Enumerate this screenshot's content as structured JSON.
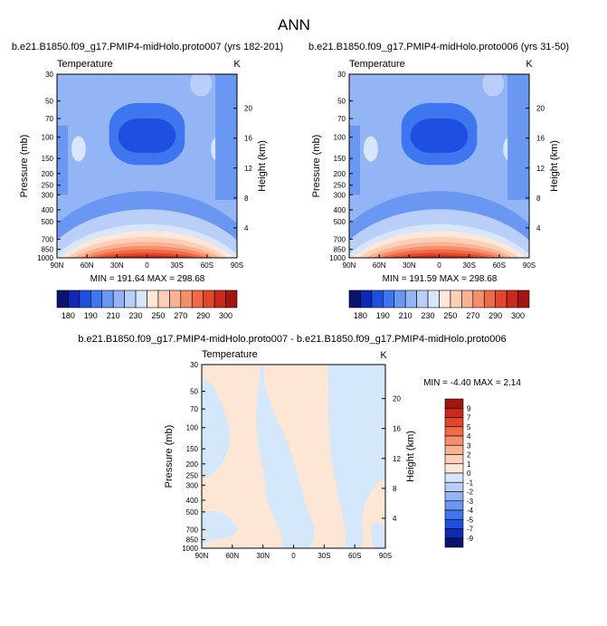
{
  "page_title": "ANN",
  "colors": {
    "cool": [
      "#0a146e",
      "#1029b4",
      "#1f4fe0",
      "#3e76f0",
      "#6a97f2",
      "#93b5f5",
      "#b9cff8",
      "#d8e6fb"
    ],
    "warm": [
      "#fde7d8",
      "#fbd0b6",
      "#f9b394",
      "#f58f6b",
      "#ef6a47",
      "#e2462c",
      "#c92a1b",
      "#a31510"
    ],
    "diff_cool": "#d4e7fb",
    "diff_warm": "#fde7d4"
  },
  "panels": [
    {
      "title": "b.e21.B1850.f09_g17.PMIP4-midHolo.proto007 (yrs 182-201)",
      "subtitle": "Temperature",
      "units": "K",
      "minmax": "MIN = 191.64  MAX = 298.68"
    },
    {
      "title": "b.e21.B1850.f09_g17.PMIP4-midHolo.proto006 (yrs 31-50)",
      "subtitle": "Temperature",
      "units": "K",
      "minmax": "MIN = 191.59  MAX = 298.68"
    }
  ],
  "diff_panel": {
    "title": "b.e21.B1850.f09_g17.PMIP4-midHolo.proto007 - b.e21.B1850.f09_g17.PMIP4-midHolo.proto006",
    "subtitle": "Temperature",
    "units": "K",
    "minmax": "MIN =  -4.40   MAX =   2.14"
  },
  "axes": {
    "x_ticks": [
      "90N",
      "60N",
      "30N",
      "0",
      "30S",
      "60S",
      "90S"
    ],
    "y_ticks": [
      "30",
      "50",
      "70",
      "100",
      "150",
      "200",
      "250",
      "300",
      "400",
      "500",
      "700",
      "850",
      "1000"
    ],
    "height_ticks": [
      "20",
      "16",
      "12",
      "8",
      "4"
    ],
    "ylabel": "Pressure (mb)",
    "ylabel_right": "Height (km)"
  },
  "colorbar_top": {
    "labels": [
      "180",
      "190",
      "210",
      "230",
      "250",
      "270",
      "290",
      "300"
    ]
  },
  "colorbar_diff": {
    "labels": [
      "9",
      "7",
      "5",
      "4",
      "3",
      "2",
      "1",
      "0",
      "-1",
      "-2",
      "-3",
      "-4",
      "-5",
      "-7",
      "-9"
    ]
  },
  "chart_data": [
    {
      "type": "heatmap",
      "title": "b.e21.B1850.f09_g17.PMIP4-midHolo.proto007 (yrs 182-201)",
      "variable": "Temperature",
      "units": "K",
      "x_axis": [
        "90N",
        "60N",
        "30N",
        "0",
        "30S",
        "60S",
        "90S"
      ],
      "y_axis_pressure_mb": [
        30,
        50,
        70,
        100,
        150,
        200,
        250,
        300,
        400,
        500,
        700,
        850,
        1000
      ],
      "y_axis_height_km": [
        20,
        16,
        12,
        8,
        4
      ],
      "contour_levels": [
        180,
        190,
        210,
        230,
        250,
        270,
        290,
        300
      ],
      "min": 191.64,
      "max": 298.68
    },
    {
      "type": "heatmap",
      "title": "b.e21.B1850.f09_g17.PMIP4-midHolo.proto006 (yrs 31-50)",
      "variable": "Temperature",
      "units": "K",
      "x_axis": [
        "90N",
        "60N",
        "30N",
        "0",
        "30S",
        "60S",
        "90S"
      ],
      "y_axis_pressure_mb": [
        30,
        50,
        70,
        100,
        150,
        200,
        250,
        300,
        400,
        500,
        700,
        850,
        1000
      ],
      "y_axis_height_km": [
        20,
        16,
        12,
        8,
        4
      ],
      "contour_levels": [
        180,
        190,
        210,
        230,
        250,
        270,
        290,
        300
      ],
      "min": 191.59,
      "max": 298.68
    },
    {
      "type": "heatmap",
      "title": "b.e21.B1850.f09_g17.PMIP4-midHolo.proto007 - b.e21.B1850.f09_g17.PMIP4-midHolo.proto006",
      "variable": "Temperature",
      "units": "K",
      "x_axis": [
        "90N",
        "60N",
        "30N",
        "0",
        "30S",
        "60S",
        "90S"
      ],
      "y_axis_pressure_mb": [
        30,
        50,
        70,
        100,
        150,
        200,
        250,
        300,
        400,
        500,
        700,
        850,
        1000
      ],
      "y_axis_height_km": [
        20,
        16,
        12,
        8,
        4
      ],
      "contour_levels": [
        -9,
        -7,
        -5,
        -4,
        -3,
        -2,
        -1,
        0,
        1,
        2,
        3,
        4,
        5,
        7,
        9
      ],
      "min": -4.4,
      "max": 2.14
    }
  ]
}
